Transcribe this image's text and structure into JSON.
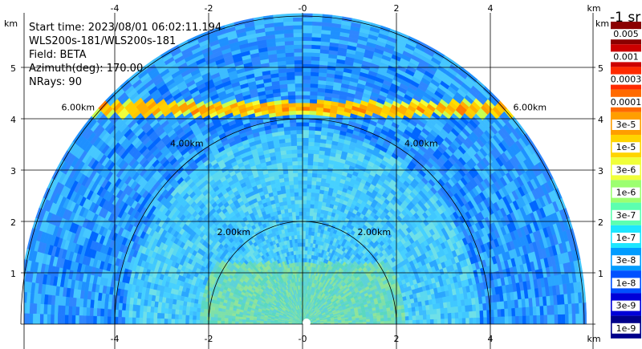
{
  "info": {
    "start_time": "Start time: 2023/08/01 06:02:11.194",
    "instrument": "WLS200s-181/WLS200s-181",
    "field": "Field: BETA",
    "azimuth": "Azimuth(deg): 170.00",
    "nrays": "NRays: 90"
  },
  "colorbar": {
    "unit_label": "-1 sr",
    "levels": [
      "0.005",
      "0.001",
      "0.0003",
      "0.0001",
      "3e-5",
      "1e-5",
      "3e-6",
      "1e-6",
      "3e-7",
      "1e-7",
      "3e-8",
      "1e-8",
      "3e-9",
      "1e-9"
    ],
    "colors": [
      "#8b0000",
      "#cc0000",
      "#ff2a00",
      "#ff6a00",
      "#ff9e00",
      "#ffd400",
      "#f0ff3a",
      "#9cff70",
      "#5cffb0",
      "#1ee6ff",
      "#009cff",
      "#0050ff",
      "#0000d8",
      "#00008b"
    ]
  },
  "axes": {
    "unit": "km",
    "x_ticks": [
      "-4",
      "-2",
      "-0",
      "2",
      "4"
    ],
    "y_ticks": [
      "1",
      "2",
      "3",
      "4",
      "5"
    ]
  },
  "rings": [
    {
      "range_km": 2,
      "label": "2.00km"
    },
    {
      "range_km": 4,
      "label": "4.00km"
    },
    {
      "range_km": 6,
      "label": "6.00km"
    }
  ],
  "chart_data": {
    "type": "heatmap",
    "title": "",
    "xlabel": "km",
    "ylabel": "km",
    "xlim": [
      -6.2,
      6.2
    ],
    "ylim": [
      0,
      5.9
    ],
    "max_range_km": 6.05,
    "field": "BETA",
    "azimuth_deg": 170.0,
    "nrays": 90,
    "range_rings_km": [
      2,
      4,
      6
    ],
    "feature": {
      "type": "aerosol/cloud layer",
      "height_km": 4.2,
      "beta": 0.0003
    }
  }
}
